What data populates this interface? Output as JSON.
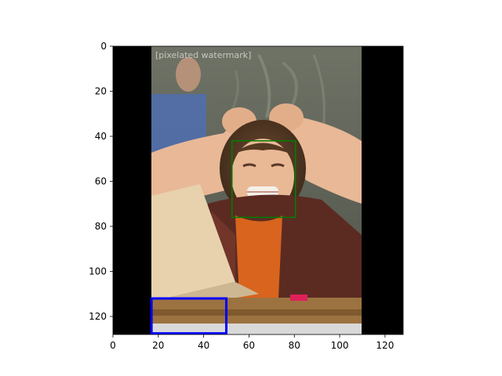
{
  "figure": {
    "background": "#ffffff",
    "axes": {
      "x_ticks": [
        0,
        20,
        40,
        60,
        80,
        100,
        120
      ],
      "y_ticks": [
        0,
        20,
        40,
        60,
        80,
        100,
        120
      ],
      "xlim": [
        0,
        128
      ],
      "ylim": [
        128,
        0
      ]
    },
    "image": {
      "subject": "pixelated photo of a frustrated child clutching their hair, seated at a desk with a laptop",
      "content_x_range": [
        17,
        110
      ],
      "padding_color": "#000000",
      "overlay_text": "[pixelated watermark]"
    },
    "boxes": [
      {
        "name": "face-box",
        "color": "#008000",
        "x0": 52.5,
        "y0": 42,
        "x1": 80.5,
        "y1": 76
      },
      {
        "name": "bottom-left-box",
        "color": "#0000ff",
        "x0": 17,
        "y0": 112,
        "x1": 50,
        "y1": 127.5
      }
    ]
  }
}
